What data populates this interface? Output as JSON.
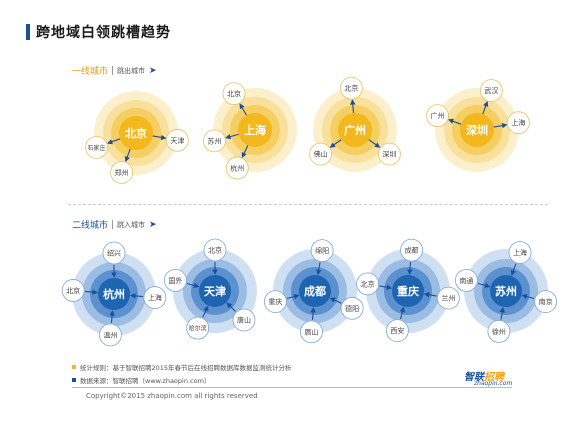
{
  "title": "跨地域白领跳槽趋势",
  "tier1": {
    "label": "一线城市",
    "sub": "跳出城市",
    "arrow": "➤"
  },
  "tier2": {
    "label": "二线城市",
    "sub": "跳入城市",
    "arrow": "➤"
  },
  "colors": {
    "accent_blue": "#1b4f9c",
    "tier1_center": "#f2b81e",
    "tier1_ring1": "#f6cf62",
    "tier1_ring2": "#f9e09c",
    "tier1_ring3": "#fcefcb",
    "tier2_center": "#1e64b0",
    "tier2_ring1": "#5c91cf",
    "tier2_ring2": "#9bbde4",
    "tier2_ring3": "#cfe0f3"
  },
  "clusters": [
    {
      "tier": 1,
      "direction": "out",
      "center": "北京",
      "satellites": [
        "天津",
        "郑州",
        "石家庄"
      ]
    },
    {
      "tier": 1,
      "direction": "out",
      "center": "上海",
      "satellites": [
        "北京",
        "苏州",
        "杭州"
      ]
    },
    {
      "tier": 1,
      "direction": "out",
      "center": "广州",
      "satellites": [
        "北京",
        "佛山",
        "深圳"
      ]
    },
    {
      "tier": 1,
      "direction": "out",
      "center": "深圳",
      "satellites": [
        "武汉",
        "广州",
        "上海"
      ]
    },
    {
      "tier": 2,
      "direction": "in",
      "center": "杭州",
      "satellites": [
        "绍兴",
        "上海",
        "温州",
        "北京"
      ]
    },
    {
      "tier": 2,
      "direction": "in",
      "center": "天津",
      "satellites": [
        "北京",
        "唐山",
        "哈尔滨",
        "国外"
      ]
    },
    {
      "tier": 2,
      "direction": "in",
      "center": "成都",
      "satellites": [
        "绵阳",
        "德阳",
        "眉山",
        "重庆"
      ]
    },
    {
      "tier": 2,
      "direction": "in",
      "center": "重庆",
      "satellites": [
        "成都",
        "兰州",
        "西安",
        "北京"
      ]
    },
    {
      "tier": 2,
      "direction": "in",
      "center": "苏州",
      "satellites": [
        "上海",
        "南京",
        "徐州",
        "南通"
      ]
    }
  ],
  "legend": {
    "stat_label": "统计规则：基于智联招聘2015年春节后在线招聘数据库数据监测统计分析",
    "source_label": "数据来源：智联招聘（www.zhaopin.com）"
  },
  "logo": {
    "part1": "智联",
    "part2": "招聘",
    "sub": "zhaopin.com"
  },
  "copyright": "Copyright©2015 zhaopin.com all rights reserved"
}
